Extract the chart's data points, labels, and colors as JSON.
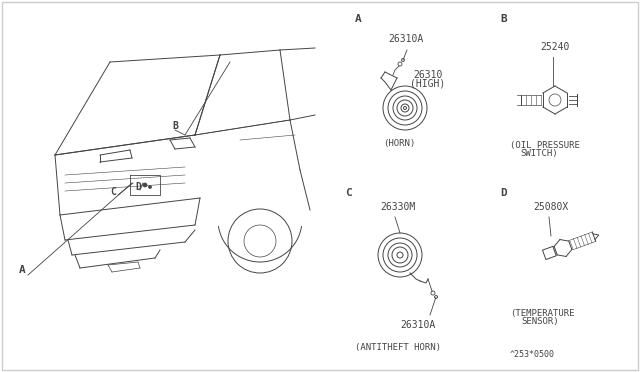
{
  "bg_color": "#ffffff",
  "line_color": "#444444",
  "text_color": "#444444",
  "border_color": "#cccccc",
  "footer_text": "^253*0500",
  "fs_section": 8,
  "fs_partnum": 7,
  "fs_desc": 6.5,
  "fs_footer": 6,
  "sections": {
    "A_label": "A",
    "A_part1": "26310A",
    "A_part2_line1": "26310",
    "A_part2_line2": "(HIGH)",
    "A_desc": "(HORN)",
    "B_label": "B",
    "B_part1": "25240",
    "B_desc_line1": "(OIL PRESSURE",
    "B_desc_line2": "SWITCH)",
    "C_label": "C",
    "C_part1": "26330M",
    "C_part2": "26310A",
    "C_desc": "(ANTITHEFT HORN)",
    "D_label": "D",
    "D_part1": "25080X",
    "D_desc_line1": "(TEMPERATURE",
    "D_desc_line2": "SENSOR)"
  }
}
